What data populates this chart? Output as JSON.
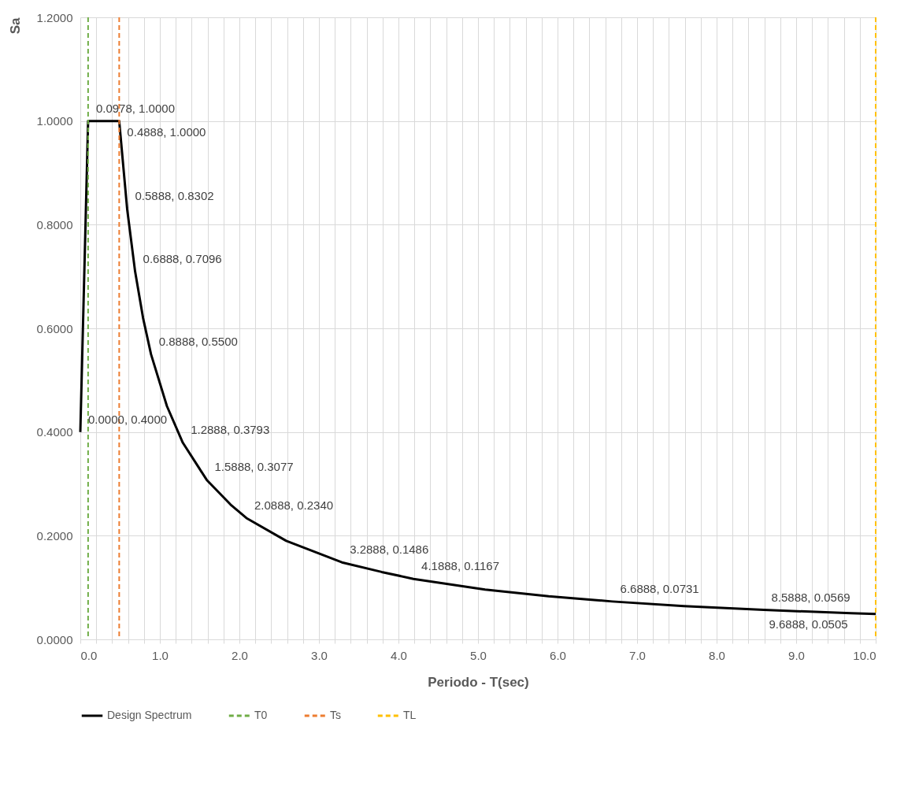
{
  "chart_data": {
    "type": "line",
    "xlabel": "Periodo - T(sec)",
    "ylabel": "Sa",
    "xlim": [
      0,
      10
    ],
    "ylim": [
      0,
      1.2
    ],
    "xticks": [
      {
        "value": 0,
        "label": "0.0"
      },
      {
        "value": 0.2,
        "label": null
      },
      {
        "value": 0.4,
        "label": null
      },
      {
        "value": 0.6,
        "label": null
      },
      {
        "value": 0.8,
        "label": null
      },
      {
        "value": 1,
        "label": "1.0"
      },
      {
        "value": 1.2,
        "label": null
      },
      {
        "value": 1.4,
        "label": null
      },
      {
        "value": 1.6,
        "label": null
      },
      {
        "value": 1.8,
        "label": null
      },
      {
        "value": 2,
        "label": "2.0"
      },
      {
        "value": 2.2,
        "label": null
      },
      {
        "value": 2.4,
        "label": null
      },
      {
        "value": 2.6,
        "label": null
      },
      {
        "value": 2.8,
        "label": null
      },
      {
        "value": 3,
        "label": "3.0"
      },
      {
        "value": 3.2,
        "label": null
      },
      {
        "value": 3.4,
        "label": null
      },
      {
        "value": 3.6,
        "label": null
      },
      {
        "value": 3.8,
        "label": null
      },
      {
        "value": 4,
        "label": "4.0"
      },
      {
        "value": 4.2,
        "label": null
      },
      {
        "value": 4.4,
        "label": null
      },
      {
        "value": 4.6,
        "label": null
      },
      {
        "value": 4.8,
        "label": null
      },
      {
        "value": 5,
        "label": "5.0"
      },
      {
        "value": 5.2,
        "label": null
      },
      {
        "value": 5.4,
        "label": null
      },
      {
        "value": 5.6,
        "label": null
      },
      {
        "value": 5.8,
        "label": null
      },
      {
        "value": 6,
        "label": "6.0"
      },
      {
        "value": 6.2,
        "label": null
      },
      {
        "value": 6.4,
        "label": null
      },
      {
        "value": 6.6,
        "label": null
      },
      {
        "value": 6.8,
        "label": null
      },
      {
        "value": 7,
        "label": "7.0"
      },
      {
        "value": 7.2,
        "label": null
      },
      {
        "value": 7.4,
        "label": null
      },
      {
        "value": 7.6,
        "label": null
      },
      {
        "value": 7.8,
        "label": null
      },
      {
        "value": 8,
        "label": "8.0"
      },
      {
        "value": 8.2,
        "label": null
      },
      {
        "value": 8.4,
        "label": null
      },
      {
        "value": 8.6,
        "label": null
      },
      {
        "value": 8.8,
        "label": null
      },
      {
        "value": 9,
        "label": "9.0"
      },
      {
        "value": 9.2,
        "label": null
      },
      {
        "value": 9.4,
        "label": null
      },
      {
        "value": 9.6,
        "label": null
      },
      {
        "value": 9.8,
        "label": null
      },
      {
        "value": 10,
        "label": "10.0"
      }
    ],
    "yticks": [
      {
        "value": 0,
        "label": "0.0000"
      },
      {
        "value": 0.2,
        "label": "0.2000"
      },
      {
        "value": 0.4,
        "label": "0.4000"
      },
      {
        "value": 0.6,
        "label": "0.6000"
      },
      {
        "value": 0.8,
        "label": "0.8000"
      },
      {
        "value": 1,
        "label": "1.0000"
      },
      {
        "value": 1.2,
        "label": "1.2000"
      }
    ],
    "grid": true,
    "legend": "bottom",
    "line_style": "solid",
    "series": [
      {
        "name": "Design Spectrum",
        "color": "#000000",
        "x": [
          0,
          0.0978,
          0.4888,
          0.5888,
          0.6888,
          0.7888,
          0.8888,
          1.0888,
          1.2888,
          1.5888,
          1.8888,
          2.0888,
          2.5888,
          3.2888,
          3.7888,
          4.1888,
          5.0888,
          5.8888,
          6.6888,
          7.5888,
          8.5888,
          9.6888,
          10
        ],
        "values": [
          0.4,
          1,
          1,
          0.8302,
          0.7096,
          0.62,
          0.55,
          0.45,
          0.3793,
          0.3077,
          0.26,
          0.234,
          0.19,
          0.1486,
          0.13,
          0.1167,
          0.096,
          0.083,
          0.0731,
          0.064,
          0.0569,
          0.0505,
          0.049
        ],
        "value_labels": [
          "0.0000, 0.4000",
          "0.0978, 1.0000",
          "0.4888, 1.0000",
          "0.5888, 0.8302",
          "0.6888, 0.7096",
          null,
          "0.8888, 0.5500",
          null,
          "1.2888, 0.3793",
          "1.5888, 0.3077",
          null,
          "2.0888, 0.2340",
          null,
          "3.2888, 0.1486",
          null,
          "4.1888, 0.1167",
          null,
          null,
          "6.6888, 0.0731",
          null,
          "8.5888, 0.0569",
          "9.6888, 0.0505",
          null
        ]
      }
    ],
    "ref_lines": [
      {
        "axis": "x",
        "value": 0.0978,
        "label": "T0",
        "color": "#70ad47",
        "line_style": "dashed"
      },
      {
        "axis": "x",
        "value": 0.4888,
        "label": "Ts",
        "color": "#ed7d31",
        "line_style": "dashed"
      },
      {
        "axis": "x",
        "value": 10,
        "label": "TL",
        "color": "#ffc000",
        "line_style": "dashed"
      }
    ]
  }
}
